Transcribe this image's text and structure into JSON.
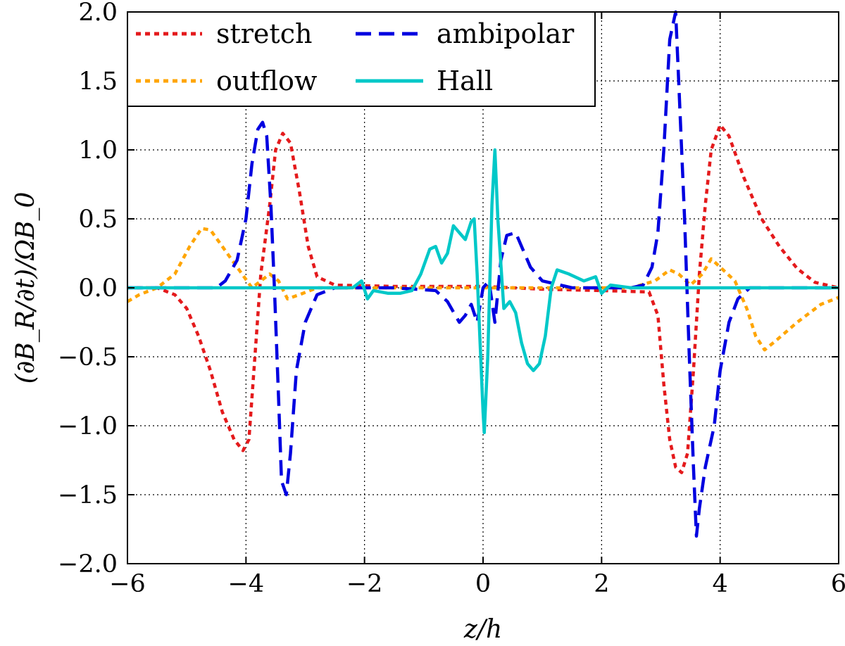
{
  "chart_data": {
    "type": "line",
    "title": "",
    "xlabel": "z/h",
    "ylabel": "(∂B_R/∂t)/ΩB_0",
    "xlim": [
      -6,
      6
    ],
    "ylim": [
      -2,
      2
    ],
    "xticks": [
      -6,
      -4,
      -2,
      0,
      2,
      4,
      6
    ],
    "yticks": [
      -2,
      -1.5,
      -1,
      -0.5,
      0,
      0.5,
      1,
      1.5,
      2
    ],
    "xtick_labels": [
      "−6",
      "−4",
      "−2",
      "0",
      "2",
      "4",
      "6"
    ],
    "ytick_labels": [
      "−2.0",
      "−1.5",
      "−1.0",
      "−0.5",
      "0.0",
      "0.5",
      "1.0",
      "1.5",
      "2.0"
    ],
    "grid": true,
    "legend_position": "top-left",
    "series": [
      {
        "name": "stretch",
        "color": "#e41a1c",
        "style": "dotted",
        "points": [
          [
            -6,
            0
          ],
          [
            -5.5,
            0
          ],
          [
            -5.2,
            -0.05
          ],
          [
            -5.0,
            -0.15
          ],
          [
            -4.8,
            -0.35
          ],
          [
            -4.6,
            -0.6
          ],
          [
            -4.4,
            -0.9
          ],
          [
            -4.2,
            -1.1
          ],
          [
            -4.05,
            -1.18
          ],
          [
            -3.95,
            -1.1
          ],
          [
            -3.85,
            -0.5
          ],
          [
            -3.75,
            0.1
          ],
          [
            -3.6,
            0.6
          ],
          [
            -3.5,
            1.0
          ],
          [
            -3.38,
            1.12
          ],
          [
            -3.25,
            1.05
          ],
          [
            -3.1,
            0.7
          ],
          [
            -2.95,
            0.3
          ],
          [
            -2.8,
            0.08
          ],
          [
            -2.5,
            0.02
          ],
          [
            -1.5,
            0.01
          ],
          [
            0,
            0.01
          ],
          [
            1.0,
            -0.01
          ],
          [
            2.0,
            -0.02
          ],
          [
            2.8,
            -0.03
          ],
          [
            2.95,
            -0.2
          ],
          [
            3.05,
            -0.7
          ],
          [
            3.15,
            -1.1
          ],
          [
            3.25,
            -1.3
          ],
          [
            3.35,
            -1.34
          ],
          [
            3.45,
            -1.2
          ],
          [
            3.55,
            -0.6
          ],
          [
            3.65,
            0.1
          ],
          [
            3.75,
            0.6
          ],
          [
            3.85,
            1.0
          ],
          [
            4.0,
            1.18
          ],
          [
            4.15,
            1.1
          ],
          [
            4.4,
            0.8
          ],
          [
            4.7,
            0.5
          ],
          [
            5.0,
            0.3
          ],
          [
            5.3,
            0.14
          ],
          [
            5.6,
            0.04
          ],
          [
            6,
            0
          ]
        ]
      },
      {
        "name": "outflow",
        "color": "#ffa500",
        "style": "dotted",
        "points": [
          [
            -6,
            -0.1
          ],
          [
            -5.8,
            -0.05
          ],
          [
            -5.5,
            0
          ],
          [
            -5.2,
            0.1
          ],
          [
            -4.95,
            0.3
          ],
          [
            -4.75,
            0.43
          ],
          [
            -4.6,
            0.42
          ],
          [
            -4.4,
            0.3
          ],
          [
            -4.1,
            0.12
          ],
          [
            -3.9,
            0
          ],
          [
            -3.75,
            0.05
          ],
          [
            -3.6,
            0.1
          ],
          [
            -3.45,
            0.05
          ],
          [
            -3.3,
            -0.08
          ],
          [
            -3.1,
            -0.05
          ],
          [
            -2.8,
            0
          ],
          [
            0,
            0
          ],
          [
            2.5,
            0
          ],
          [
            2.9,
            0.05
          ],
          [
            3.15,
            0.13
          ],
          [
            3.3,
            0.1
          ],
          [
            3.5,
            0.02
          ],
          [
            3.7,
            0.1
          ],
          [
            3.85,
            0.21
          ],
          [
            4.0,
            0.15
          ],
          [
            4.25,
            0.05
          ],
          [
            4.45,
            -0.15
          ],
          [
            4.6,
            -0.35
          ],
          [
            4.75,
            -0.45
          ],
          [
            4.95,
            -0.38
          ],
          [
            5.3,
            -0.25
          ],
          [
            5.7,
            -0.12
          ],
          [
            6,
            -0.07
          ]
        ]
      },
      {
        "name": "ambipolar",
        "color": "#0000e0",
        "style": "dashed",
        "points": [
          [
            -6,
            0
          ],
          [
            -4.5,
            0
          ],
          [
            -4.35,
            0.05
          ],
          [
            -4.15,
            0.2
          ],
          [
            -4.0,
            0.5
          ],
          [
            -3.9,
            0.9
          ],
          [
            -3.8,
            1.15
          ],
          [
            -3.72,
            1.2
          ],
          [
            -3.65,
            1.1
          ],
          [
            -3.58,
            0.6
          ],
          [
            -3.52,
            0
          ],
          [
            -3.45,
            -0.8
          ],
          [
            -3.4,
            -1.4
          ],
          [
            -3.32,
            -1.5
          ],
          [
            -3.25,
            -1.2
          ],
          [
            -3.15,
            -0.6
          ],
          [
            -3.0,
            -0.25
          ],
          [
            -2.8,
            -0.05
          ],
          [
            -2.5,
            0
          ],
          [
            -2,
            0
          ],
          [
            -1.5,
            0
          ],
          [
            -0.8,
            -0.02
          ],
          [
            -0.6,
            -0.1
          ],
          [
            -0.4,
            -0.25
          ],
          [
            -0.3,
            -0.2
          ],
          [
            -0.2,
            -0.12
          ],
          [
            -0.1,
            -0.25
          ],
          [
            0,
            0
          ],
          [
            0.1,
            0.05
          ],
          [
            0.2,
            -0.25
          ],
          [
            0.3,
            0.2
          ],
          [
            0.4,
            0.38
          ],
          [
            0.55,
            0.4
          ],
          [
            0.65,
            0.3
          ],
          [
            0.8,
            0.15
          ],
          [
            1.0,
            0.05
          ],
          [
            1.5,
            0
          ],
          [
            2.5,
            0
          ],
          [
            2.7,
            0.02
          ],
          [
            2.85,
            0.15
          ],
          [
            2.95,
            0.4
          ],
          [
            3.05,
            1.0
          ],
          [
            3.15,
            1.8
          ],
          [
            3.25,
            2.0
          ],
          [
            3.3,
            1.5
          ],
          [
            3.4,
            0.5
          ],
          [
            3.48,
            -0.5
          ],
          [
            3.55,
            -1.3
          ],
          [
            3.6,
            -1.8
          ],
          [
            3.65,
            -1.6
          ],
          [
            3.75,
            -1.3
          ],
          [
            3.9,
            -1.0
          ],
          [
            4.0,
            -0.6
          ],
          [
            4.15,
            -0.25
          ],
          [
            4.3,
            -0.08
          ],
          [
            4.5,
            0
          ],
          [
            6,
            0
          ]
        ]
      },
      {
        "name": "Hall",
        "color": "#00c8c8",
        "style": "solid",
        "points": [
          [
            -6,
            0
          ],
          [
            -2.2,
            0
          ],
          [
            -2.05,
            0.05
          ],
          [
            -1.95,
            -0.08
          ],
          [
            -1.85,
            -0.02
          ],
          [
            -1.6,
            -0.04
          ],
          [
            -1.4,
            -0.04
          ],
          [
            -1.2,
            -0.02
          ],
          [
            -1.05,
            0.1
          ],
          [
            -0.9,
            0.28
          ],
          [
            -0.8,
            0.3
          ],
          [
            -0.7,
            0.18
          ],
          [
            -0.6,
            0.25
          ],
          [
            -0.5,
            0.45
          ],
          [
            -0.4,
            0.4
          ],
          [
            -0.3,
            0.35
          ],
          [
            -0.2,
            0.48
          ],
          [
            -0.15,
            0.5
          ],
          [
            -0.1,
            0.1
          ],
          [
            -0.05,
            -0.4
          ],
          [
            0,
            -0.9
          ],
          [
            0.02,
            -1.05
          ],
          [
            0.08,
            -0.5
          ],
          [
            0.15,
            0.6
          ],
          [
            0.2,
            1.0
          ],
          [
            0.25,
            0.5
          ],
          [
            0.35,
            -0.15
          ],
          [
            0.45,
            -0.1
          ],
          [
            0.55,
            -0.18
          ],
          [
            0.65,
            -0.4
          ],
          [
            0.75,
            -0.55
          ],
          [
            0.85,
            -0.6
          ],
          [
            0.95,
            -0.55
          ],
          [
            1.05,
            -0.35
          ],
          [
            1.15,
            0
          ],
          [
            1.25,
            0.13
          ],
          [
            1.45,
            0.1
          ],
          [
            1.7,
            0.05
          ],
          [
            1.9,
            0.08
          ],
          [
            2.0,
            -0.04
          ],
          [
            2.15,
            0.02
          ],
          [
            2.5,
            0
          ],
          [
            6,
            0
          ]
        ]
      }
    ]
  }
}
